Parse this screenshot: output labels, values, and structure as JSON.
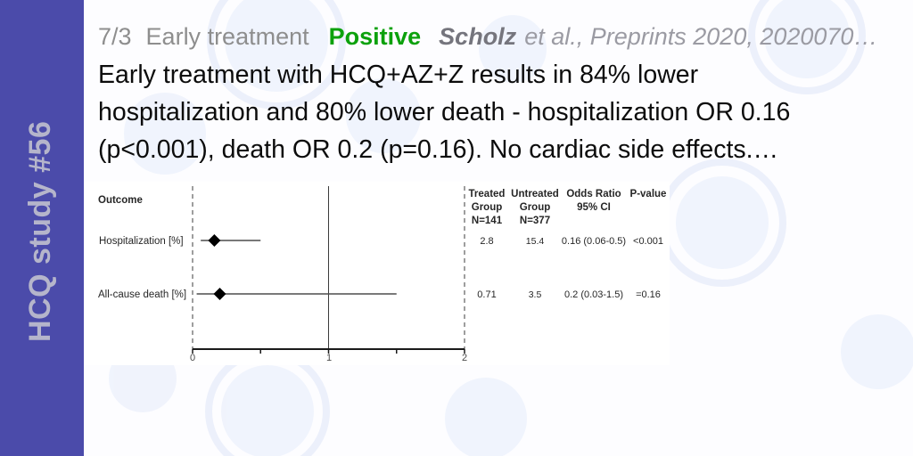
{
  "card": {
    "background_color": "#fdfdff",
    "watermark_color": "#e2e9fa"
  },
  "sidebar": {
    "label": "HCQ study #56",
    "background_color": "#4b4baa",
    "text_color": "#b5b5cb"
  },
  "header": {
    "index": "7/3",
    "stage": "Early treatment",
    "verdict": "Positive",
    "authors": "Scholz",
    "citation": "et al., Preprints 2020, 2020070…",
    "colors": {
      "muted": "#8e8e8e",
      "verdict": "#0ca10c",
      "authors": "#75757d",
      "citation": "#9b9ba3"
    }
  },
  "summary": {
    "lines": [
      "Early treatment with HCQ+AZ+Z results in 84% lower",
      "hospitalization and 80% lower death - hospitalization OR 0.16",
      "(p<0.001), death OR 0.2 (p=0.16). No cardiac side effects.…"
    ]
  },
  "chart_data": {
    "type": "scatter",
    "subtype": "forest-plot",
    "title": "",
    "outcome_header": "Outcome",
    "categories": [
      "Hospitalization [%]",
      "All-cause death [%]"
    ],
    "series": [
      {
        "name": "Odds Ratio",
        "values": [
          0.16,
          0.2
        ],
        "ci_low": [
          0.06,
          0.03
        ],
        "ci_high": [
          0.5,
          1.5
        ]
      }
    ],
    "xlim": [
      0,
      2
    ],
    "reference_line": 1,
    "x_ticks": [
      "0",
      "1",
      "2"
    ],
    "x_tick_values": [
      0,
      1,
      2
    ],
    "x_minor_tick_values": [
      0.5,
      1.5
    ],
    "grid": false,
    "table": {
      "header_lines": [
        [
          "Treated",
          "Group",
          "N=141"
        ],
        [
          "Untreated",
          "Group",
          "N=377"
        ],
        [
          "Odds Ratio",
          "95% CI"
        ],
        [
          "P-value"
        ]
      ],
      "rows": [
        [
          "2.8",
          "15.4",
          "0.16 (0.06-0.5)",
          "<0.001"
        ],
        [
          "0.71",
          "3.5",
          "0.2 (0.03-1.5)",
          "=0.16"
        ]
      ]
    }
  }
}
